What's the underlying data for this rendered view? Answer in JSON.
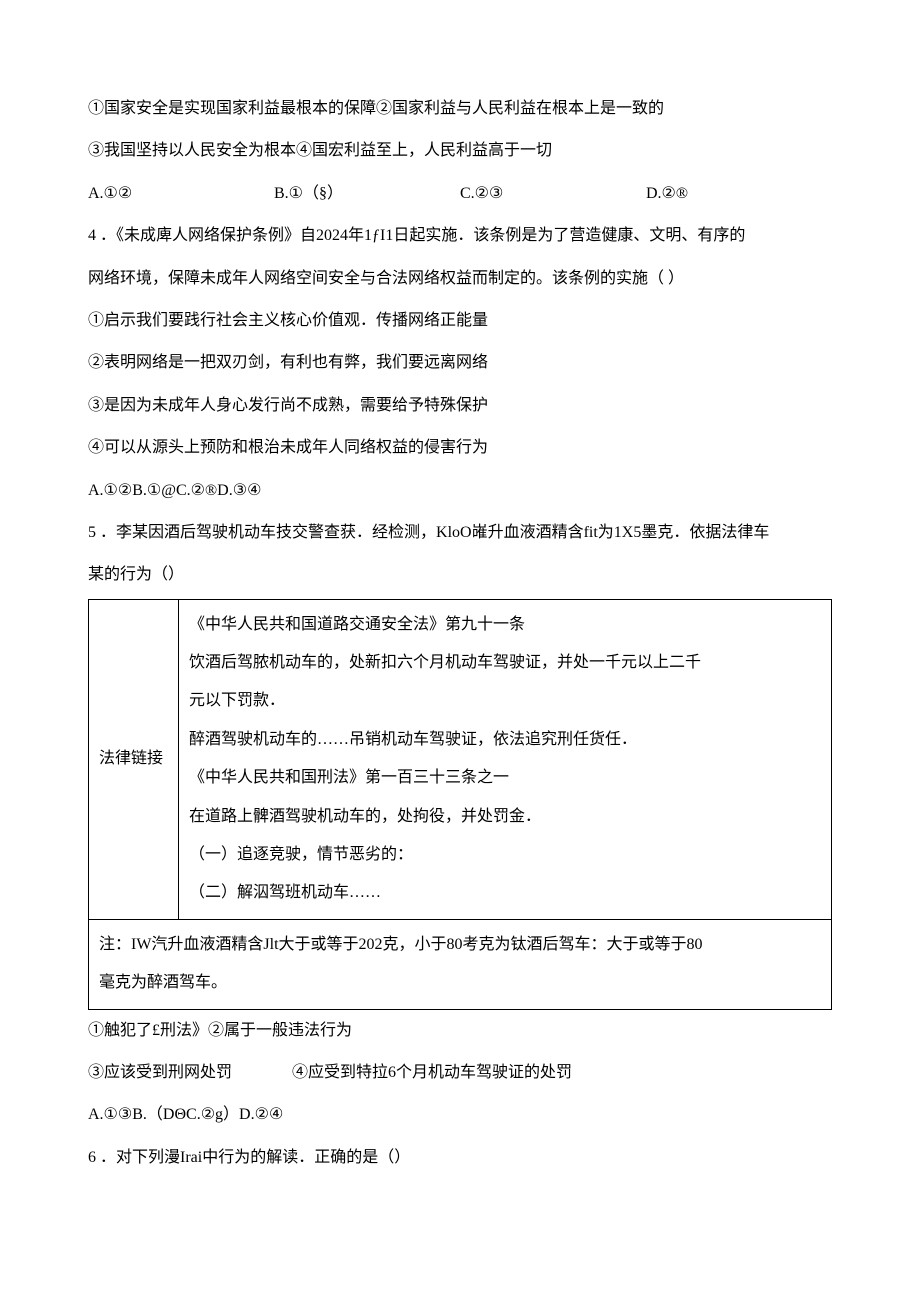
{
  "q3": {
    "stem1": "①国家安全是实现国家利益最根本的保障②国家利益与人民利益在根本上是一致的",
    "stem2": "③我国坚持以人民安全为根本④国宏利益至上，人民利益高于一切",
    "options": {
      "A": "A.①②",
      "B": "B.①（§）",
      "C": "C.②③",
      "D": "D.②®"
    }
  },
  "q4": {
    "num": "4 ．",
    "stem1": "《未成庳人网络保护条例》自2024年1ƒI1日起实施．该条例是为了营造健康、文明、有序的",
    "stem2": "网络环境，保障未成年人网络空间安全与合法网络权益而制定的。该条例的实施（            ）",
    "line1": "①启示我们要践行社会主义核心价值观．传播网络正能量",
    "line2": "②表明网络是一把双刃剑，有利也有弊，我们要远离网络",
    "line3": "③是因为未成年人身心发行尚不成熟，需要给予特殊保护",
    "line4": "④可以从源头上预防和根治未成年人同络权益的侵害行为",
    "options": "A.①②B.①@C.②®D.③④"
  },
  "q5": {
    "num": "5 ．",
    "stem1": "李某因酒后驾驶机动车技交警查获．经检测，KloO嶉升血液酒精含fit为1X5墨克．依据法律车",
    "stem2": "某的行为（）",
    "table": {
      "label": "法律链接",
      "content": {
        "p1": "《中华人民共和国道路交通安全法》第九十一条",
        "p2": "饮酒后驾脓机动车的，处新扣六个月机动车驾驶证，并处一千元以上二千",
        "p3": "元以下罚款．",
        "p4": "醉酒驾驶机动车的……吊销机动车驾驶证，依法追究刑任货任．",
        "p5": "《中华人民共和国刑法》第一百三十三条之一",
        "p6": "在道路上髀酒驾驶机动车的，处拘役，并处罚金．",
        "p7": "（一）追逐竞驶，情节恶劣的：",
        "p8": "（二）解泅驾班机动车……"
      },
      "note1": "注：IW汽升血液酒精含Jlt大于或等于202克，小于80考克为钛酒后驾车：大于或等于80",
      "note2": "毫克为醉酒驾车。"
    },
    "after1": "①触犯了£刑法》②属于一般违法行为",
    "after2a": "③应该受到刑网处罚",
    "after2b": "④应受到特拉6个月机动车驾驶证的处罚",
    "options": "A.①③B.（DΘC.②g）D.②④"
  },
  "q6": {
    "num": "6 ．",
    "stem": "对下列漫Irai中行为的解读．正确的是（）"
  }
}
